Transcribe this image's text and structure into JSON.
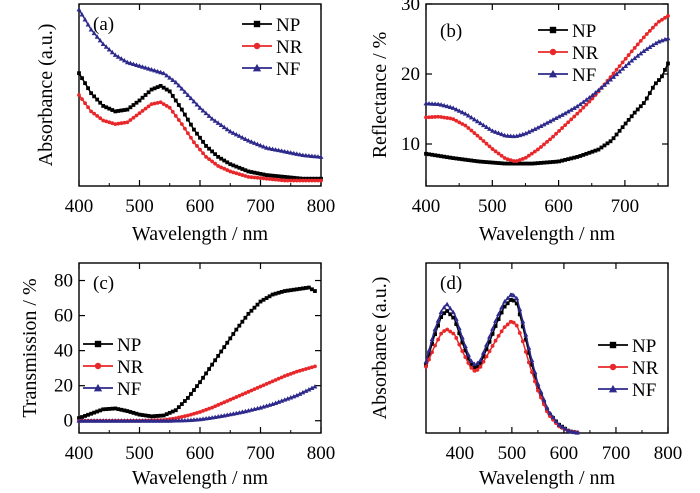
{
  "colors": {
    "NP": "#000000",
    "NR": "#e8272a",
    "NF": "#2e2a8c"
  },
  "chart_data": [
    {
      "id": "a",
      "type": "line",
      "panel_label": "(a)",
      "xlabel": "Wavelength / nm",
      "ylabel": "Absorbance (a.u.)",
      "xlim": [
        400,
        800
      ],
      "ylim": [
        0,
        1
      ],
      "xticks": [
        "400",
        "500",
        "600",
        "700",
        "800"
      ],
      "yticks": [],
      "legend": "top-right",
      "legend_labels": [
        "NP",
        "NR",
        "NF"
      ],
      "series": [
        {
          "name": "NP",
          "x": [
            400,
            420,
            440,
            460,
            480,
            500,
            520,
            535,
            550,
            570,
            590,
            610,
            630,
            650,
            680,
            710,
            740,
            770,
            800
          ],
          "y": [
            0.62,
            0.51,
            0.44,
            0.41,
            0.42,
            0.47,
            0.53,
            0.55,
            0.52,
            0.42,
            0.31,
            0.22,
            0.16,
            0.12,
            0.08,
            0.06,
            0.05,
            0.04,
            0.04
          ]
        },
        {
          "name": "NR",
          "x": [
            400,
            420,
            440,
            460,
            480,
            500,
            520,
            535,
            550,
            570,
            590,
            610,
            630,
            650,
            680,
            710,
            740,
            770,
            800
          ],
          "y": [
            0.5,
            0.41,
            0.36,
            0.34,
            0.35,
            0.4,
            0.45,
            0.46,
            0.43,
            0.34,
            0.24,
            0.16,
            0.11,
            0.08,
            0.05,
            0.04,
            0.03,
            0.03,
            0.03
          ]
        },
        {
          "name": "NF",
          "x": [
            400,
            420,
            440,
            460,
            480,
            500,
            520,
            540,
            560,
            580,
            600,
            620,
            650,
            680,
            710,
            740,
            770,
            800
          ],
          "y": [
            0.97,
            0.86,
            0.78,
            0.72,
            0.68,
            0.66,
            0.64,
            0.62,
            0.57,
            0.5,
            0.43,
            0.37,
            0.3,
            0.25,
            0.21,
            0.19,
            0.17,
            0.16
          ]
        }
      ]
    },
    {
      "id": "b",
      "type": "line",
      "panel_label": "(b)",
      "xlabel": "Wavelength / nm",
      "ylabel": "Reflectance / %",
      "xlim": [
        400,
        765
      ],
      "ylim": [
        4,
        30
      ],
      "xticks": [
        "400",
        "500",
        "600",
        "700"
      ],
      "yticks": [
        "10",
        "20",
        "30"
      ],
      "legend": "top-right",
      "legend_labels": [
        "NP",
        "NR",
        "NF"
      ],
      "series": [
        {
          "name": "NP",
          "x": [
            400,
            440,
            480,
            520,
            560,
            600,
            630,
            660,
            680,
            700,
            715,
            730,
            745,
            755,
            765
          ],
          "y": [
            8.6,
            8.0,
            7.5,
            7.2,
            7.2,
            7.5,
            8.2,
            9.2,
            10.5,
            12.8,
            14.5,
            16.0,
            18.5,
            19.5,
            21.5
          ]
        },
        {
          "name": "NR",
          "x": [
            400,
            420,
            440,
            460,
            480,
            500,
            520,
            535,
            550,
            570,
            590,
            610,
            630,
            650,
            670,
            690,
            710,
            730,
            750,
            765
          ],
          "y": [
            13.8,
            13.9,
            13.6,
            12.6,
            11.0,
            9.3,
            7.9,
            7.5,
            8.0,
            9.3,
            10.9,
            12.7,
            14.5,
            16.4,
            18.6,
            20.9,
            23.2,
            25.4,
            27.4,
            28.3
          ]
        },
        {
          "name": "NF",
          "x": [
            400,
            420,
            440,
            460,
            480,
            500,
            520,
            535,
            550,
            570,
            590,
            610,
            630,
            650,
            670,
            690,
            710,
            730,
            750,
            765
          ],
          "y": [
            15.8,
            15.7,
            15.2,
            14.3,
            13.1,
            11.9,
            11.2,
            11.1,
            11.5,
            12.4,
            13.4,
            14.4,
            15.5,
            16.9,
            18.5,
            20.2,
            21.9,
            23.4,
            24.6,
            25.1
          ]
        }
      ]
    },
    {
      "id": "c",
      "type": "line",
      "panel_label": "(c)",
      "xlabel": "Wavelength / nm",
      "ylabel": "Transmission / %",
      "xlim": [
        400,
        800
      ],
      "ylim": [
        -7,
        90
      ],
      "xticks": [
        "400",
        "500",
        "600",
        "700",
        "800"
      ],
      "yticks": [
        "0",
        "20",
        "40",
        "60",
        "80"
      ],
      "legend": "center-left",
      "legend_labels": [
        "NP",
        "NR",
        "NF"
      ],
      "series": [
        {
          "name": "NP",
          "x": [
            400,
            420,
            440,
            460,
            480,
            500,
            520,
            540,
            560,
            580,
            600,
            620,
            640,
            660,
            680,
            700,
            720,
            740,
            760,
            780,
            790
          ],
          "y": [
            1.5,
            4,
            6.5,
            7,
            5.5,
            3.5,
            2.5,
            3,
            6,
            13,
            22,
            32,
            42,
            52,
            61,
            68,
            72,
            74,
            75,
            76,
            74
          ]
        },
        {
          "name": "NR",
          "x": [
            400,
            450,
            500,
            540,
            560,
            580,
            600,
            620,
            640,
            660,
            680,
            700,
            720,
            740,
            760,
            790
          ],
          "y": [
            0,
            0,
            0,
            0.4,
            1.4,
            3,
            5,
            7.5,
            10.5,
            13.5,
            16.5,
            19.5,
            22.5,
            25.5,
            28,
            31
          ]
        },
        {
          "name": "NF",
          "x": [
            400,
            450,
            500,
            550,
            580,
            600,
            620,
            640,
            660,
            680,
            700,
            720,
            740,
            760,
            790
          ],
          "y": [
            0,
            0,
            0,
            0,
            0.3,
            0.8,
            1.8,
            3,
            4.3,
            5.8,
            7.5,
            9.5,
            12,
            14.5,
            19.5
          ]
        }
      ]
    },
    {
      "id": "d",
      "type": "line",
      "panel_label": "(d)",
      "xlabel": "Wavelength / nm",
      "ylabel": "Absorbance (a.u.)",
      "xlim": [
        335,
        800
      ],
      "ylim": [
        0,
        1
      ],
      "xticks": [
        "400",
        "500",
        "600",
        "700",
        "800"
      ],
      "yticks": [],
      "legend": "center-right",
      "legend_labels": [
        "NP",
        "NR",
        "NF"
      ],
      "series": [
        {
          "name": "NP",
          "x": [
            335,
            350,
            365,
            375,
            390,
            405,
            420,
            430,
            440,
            455,
            470,
            485,
            500,
            510,
            520,
            535,
            550,
            570,
            590,
            610,
            630
          ],
          "y": [
            0.4,
            0.56,
            0.69,
            0.72,
            0.67,
            0.53,
            0.41,
            0.38,
            0.41,
            0.52,
            0.64,
            0.74,
            0.79,
            0.76,
            0.64,
            0.44,
            0.27,
            0.12,
            0.05,
            0.01,
            0.0
          ]
        },
        {
          "name": "NR",
          "x": [
            335,
            350,
            365,
            375,
            390,
            405,
            420,
            430,
            440,
            455,
            470,
            485,
            500,
            510,
            520,
            535,
            550,
            570,
            590,
            610,
            630
          ],
          "y": [
            0.39,
            0.5,
            0.59,
            0.61,
            0.58,
            0.48,
            0.39,
            0.36,
            0.39,
            0.47,
            0.55,
            0.62,
            0.66,
            0.63,
            0.55,
            0.39,
            0.25,
            0.11,
            0.04,
            0.01,
            0.0
          ]
        },
        {
          "name": "NF",
          "x": [
            335,
            350,
            365,
            375,
            390,
            405,
            420,
            430,
            440,
            455,
            470,
            485,
            500,
            510,
            520,
            535,
            550,
            570,
            590,
            610,
            630
          ],
          "y": [
            0.42,
            0.59,
            0.72,
            0.76,
            0.7,
            0.56,
            0.43,
            0.4,
            0.43,
            0.55,
            0.67,
            0.77,
            0.82,
            0.79,
            0.67,
            0.47,
            0.29,
            0.13,
            0.05,
            0.01,
            0.0
          ]
        }
      ]
    }
  ]
}
